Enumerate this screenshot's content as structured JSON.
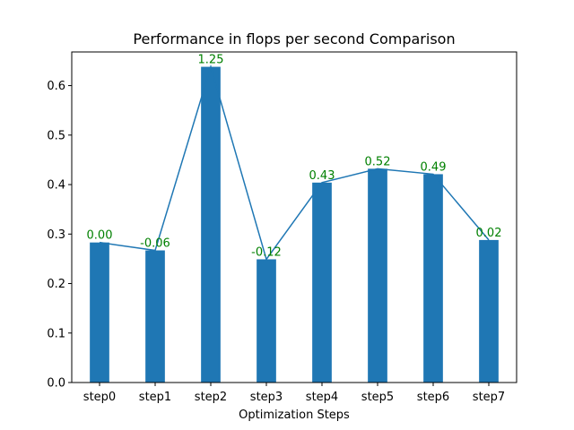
{
  "chart_data": {
    "type": "bar",
    "title": "Performance in flops per second Comparison",
    "xlabel": "Optimization Steps",
    "ylabel": "",
    "categories": [
      "step0",
      "step1",
      "step2",
      "step3",
      "step4",
      "step5",
      "step6",
      "step7"
    ],
    "values": [
      0.283,
      0.267,
      0.638,
      0.249,
      0.404,
      0.432,
      0.421,
      0.288
    ],
    "line_values": [
      0.283,
      0.267,
      0.638,
      0.249,
      0.404,
      0.432,
      0.421,
      0.288
    ],
    "annotations": [
      "0.00",
      "-0.06",
      "1.25",
      "-0.12",
      "0.43",
      "0.52",
      "0.49",
      "0.02"
    ],
    "ylim": [
      0,
      0.668
    ],
    "yticks": [
      "0.0",
      "0.1",
      "0.2",
      "0.3",
      "0.4",
      "0.5",
      "0.6"
    ],
    "grid": false,
    "colors": {
      "bar": "#1f77b4",
      "line": "#1f77b4",
      "annotation": "#008000"
    }
  }
}
